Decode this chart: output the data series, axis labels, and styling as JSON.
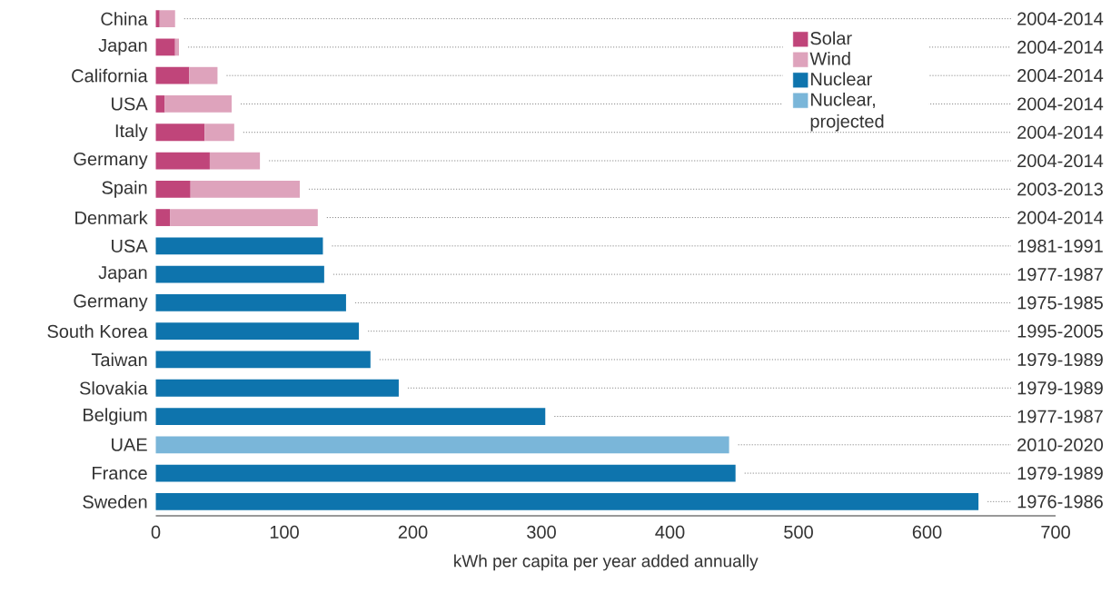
{
  "chart_data": {
    "type": "bar",
    "orientation": "horizontal",
    "stacked": true,
    "categories": [
      "China",
      "Japan",
      "California",
      "USA",
      "Italy",
      "Germany",
      "Spain",
      "Denmark",
      "USA",
      "Japan",
      "Germany",
      "South Korea",
      "Taiwan",
      "Slovakia",
      "Belgium",
      "UAE",
      "France",
      "Sweden"
    ],
    "series": [
      {
        "name": "Solar",
        "color": "#c0457a",
        "values": [
          3,
          15,
          26,
          7,
          38,
          42,
          27,
          11,
          null,
          null,
          null,
          null,
          null,
          null,
          null,
          null,
          null,
          null
        ]
      },
      {
        "name": "Wind",
        "color": "#dea3bc",
        "values": [
          12,
          3,
          22,
          52,
          23,
          39,
          85,
          115,
          null,
          null,
          null,
          null,
          null,
          null,
          null,
          null,
          null,
          null
        ]
      },
      {
        "name": "Nuclear",
        "color": "#0e74ad",
        "values": [
          null,
          null,
          null,
          null,
          null,
          null,
          null,
          null,
          130,
          131,
          148,
          158,
          167,
          189,
          303,
          null,
          451,
          640
        ]
      },
      {
        "name": "Nuclear, projected",
        "color": "#7ab6d9",
        "values": [
          null,
          null,
          null,
          null,
          null,
          null,
          null,
          null,
          null,
          null,
          null,
          null,
          null,
          null,
          null,
          446,
          null,
          null
        ]
      }
    ],
    "xlabel": "kWh per capita per year added annually",
    "xlim": [
      0,
      700
    ],
    "xticks": [
      0,
      100,
      200,
      300,
      400,
      500,
      600,
      700
    ],
    "legend": "top right",
    "annotations": [
      "2004-2014",
      "2004-2014",
      "2004-2014",
      "2004-2014",
      "2004-2014",
      "2004-2014",
      "2003-2013",
      "2004-2014",
      "1981-1991",
      "1977-1987",
      "1975-1985",
      "1995-2005",
      "1979-1989",
      "1979-1989",
      "1977-1987",
      "2010-2020",
      "1979-1989",
      "1976-1986"
    ]
  }
}
